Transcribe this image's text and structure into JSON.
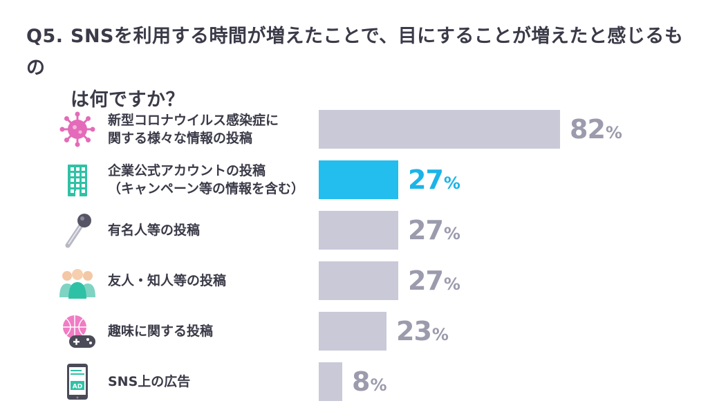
{
  "question": {
    "number": "Q5.",
    "line1": "SNSを利用する時間が増えたことで、目にすることが増えたと感じるもの",
    "line2": "は何ですか？"
  },
  "chart_data": {
    "type": "bar",
    "orientation": "horizontal",
    "categories": [
      [
        "新型コロナウイルス感染症に",
        "関する様々な情報の投稿"
      ],
      [
        "企業公式アカウントの投稿",
        "（キャンペーン等の情報を含む）"
      ],
      [
        "有名人等の投稿"
      ],
      [
        "友人・知人等の投稿"
      ],
      [
        "趣味に関する投稿"
      ],
      [
        "SNS上の広告"
      ]
    ],
    "values": [
      82,
      27,
      27,
      27,
      23,
      8
    ],
    "unit": "%",
    "highlight_index": 1,
    "icons": [
      "virus-icon",
      "building-icon",
      "microphone-icon",
      "people-icon",
      "basketball-gamepad-icon",
      "smartphone-ad-icon"
    ],
    "ad_icon_text": "AD",
    "colors": {
      "bar": "#c9c9d8",
      "highlight_bar": "#23bdee",
      "value_text": "#9b9bad",
      "highlight_text": "#1cb4e8"
    },
    "xlim": [
      0,
      100
    ]
  }
}
